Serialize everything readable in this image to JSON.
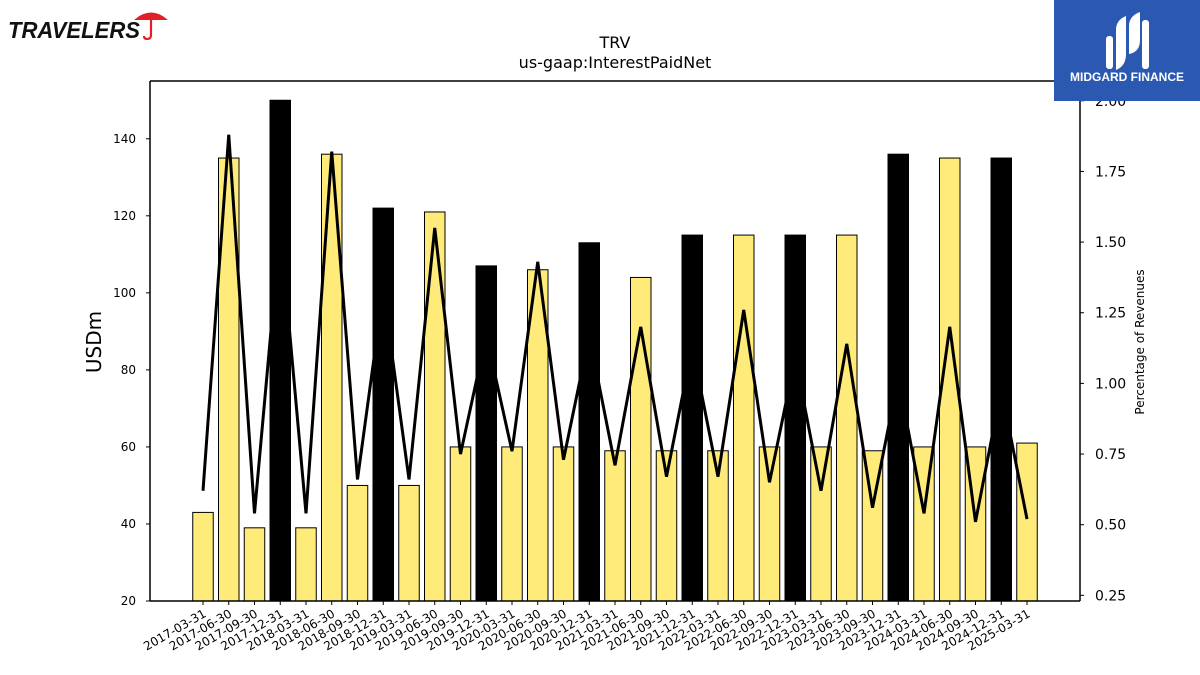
{
  "brand": {
    "company_logo_text": "TRAVELERS",
    "publisher_logo_text": "MIDGARD FINANCE"
  },
  "colors": {
    "bar_highlight": "#000000",
    "bar_default": "#ffeb7a",
    "line": "#000000",
    "logo_red": "#e01f26",
    "publisher_blue": "#2b59b1"
  },
  "chart_data": {
    "type": "bar",
    "title": "TRV",
    "subtitle": "us-gaap:InterestPaidNet",
    "ylabel": "USDm",
    "y2label": "Percentage of Revenues",
    "ylim": [
      20,
      155
    ],
    "y2lim": [
      0.23,
      2.07
    ],
    "yticks": [
      20,
      40,
      60,
      80,
      100,
      120,
      140
    ],
    "y2ticks": [
      "0.25",
      "0.50",
      "0.75",
      "1.00",
      "1.25",
      "1.50",
      "1.75",
      "2.00"
    ],
    "categories": [
      "2017-03-31",
      "2017-06-30",
      "2017-09-30",
      "2017-12-31",
      "2018-03-31",
      "2018-06-30",
      "2018-09-30",
      "2018-12-31",
      "2019-03-31",
      "2019-06-30",
      "2019-09-30",
      "2019-12-31",
      "2020-03-31",
      "2020-06-30",
      "2020-09-30",
      "2020-12-31",
      "2021-03-31",
      "2021-06-30",
      "2021-09-30",
      "2021-12-31",
      "2022-03-31",
      "2022-06-30",
      "2022-09-30",
      "2022-12-31",
      "2023-03-31",
      "2023-06-30",
      "2023-09-30",
      "2023-12-31",
      "2024-03-31",
      "2024-06-30",
      "2024-09-30",
      "2024-12-31",
      "2025-03-31"
    ],
    "series": [
      {
        "type": "bar",
        "axis": "left",
        "values": [
          43,
          135,
          39,
          150,
          39,
          136,
          50,
          122,
          50,
          121,
          60,
          107,
          60,
          106,
          60,
          113,
          59,
          104,
          59,
          115,
          59,
          115,
          60,
          115,
          60,
          115,
          59,
          136,
          60,
          135,
          60,
          135,
          61
        ]
      },
      {
        "type": "line",
        "axis": "right",
        "values": [
          0.62,
          1.88,
          0.54,
          1.55,
          0.54,
          1.82,
          0.66,
          1.33,
          0.66,
          1.55,
          0.75,
          1.17,
          0.76,
          1.43,
          0.73,
          1.17,
          0.71,
          1.2,
          0.67,
          1.13,
          0.67,
          1.26,
          0.65,
          1.09,
          0.62,
          1.14,
          0.56,
          1.02,
          0.54,
          1.2,
          0.51,
          0.98,
          0.52
        ]
      }
    ],
    "highlighted_categories": [
      "2017-12-31",
      "2018-12-31",
      "2019-12-31",
      "2020-12-31",
      "2021-12-31",
      "2022-12-31",
      "2023-12-31",
      "2024-12-31"
    ],
    "grid": false,
    "legend": "none"
  }
}
